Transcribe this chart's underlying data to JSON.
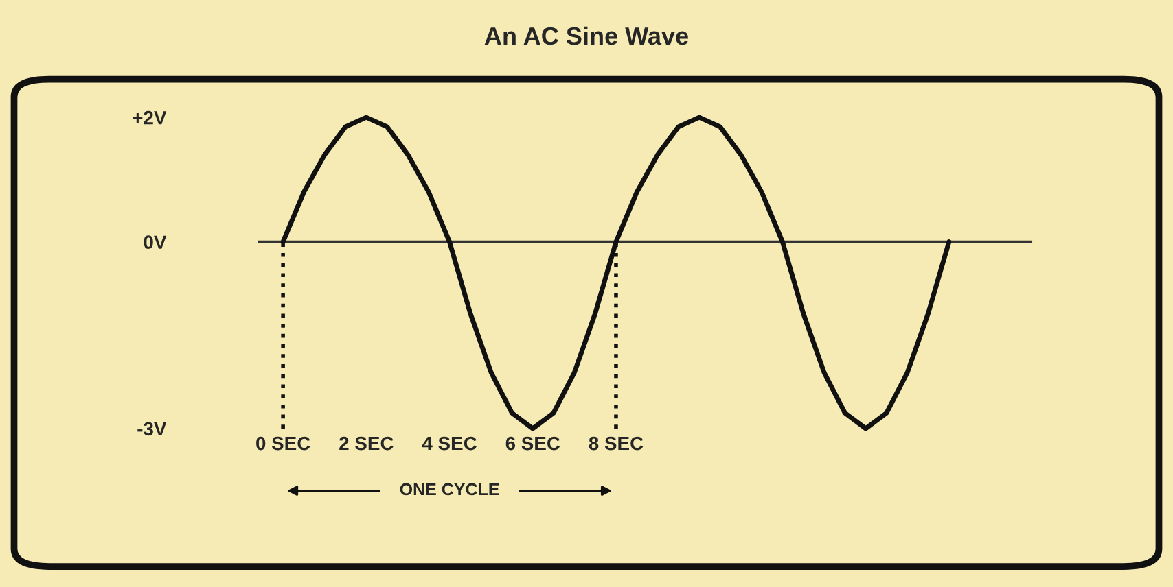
{
  "chart_data": {
    "type": "line",
    "title": "An AC Sine Wave",
    "x": [
      0,
      0.5,
      1,
      1.5,
      2,
      2.5,
      3,
      3.5,
      4,
      4.5,
      5,
      5.5,
      6,
      6.5,
      7,
      7.5,
      8,
      8.5,
      9,
      9.5,
      10,
      10.5,
      11,
      11.5,
      12,
      12.5,
      13,
      13.5,
      14,
      14.5,
      15,
      15.5,
      16
    ],
    "series": [
      {
        "color": "#111111",
        "values": [
          0,
          0.8,
          1.4,
          1.85,
          2,
          1.85,
          1.4,
          0.8,
          0,
          -1.15,
          -2.1,
          -2.75,
          -3,
          -2.75,
          -2.1,
          -1.15,
          0,
          0.8,
          1.4,
          1.85,
          2,
          1.85,
          1.4,
          0.8,
          0,
          -1.15,
          -2.1,
          -2.75,
          -3,
          -2.75,
          -2.1,
          -1.15,
          0
        ]
      }
    ],
    "xlim": [
      -0.6,
      18
    ],
    "ylim": [
      -3,
      2
    ],
    "xticks": [
      {
        "value": 0,
        "label": "0 SEC"
      },
      {
        "value": 2,
        "label": "2 SEC"
      },
      {
        "value": 4,
        "label": "4 SEC"
      },
      {
        "value": 6,
        "label": "6 SEC"
      },
      {
        "value": 8,
        "label": "8 SEC"
      }
    ],
    "yticks": [
      {
        "value": 2,
        "label": "+2V"
      },
      {
        "value": 0,
        "label": "0V"
      },
      {
        "value": -3,
        "label": "-3V"
      }
    ],
    "ref_lines": [
      {
        "axis": "y",
        "value": 0,
        "color": "#333333",
        "line_style": "solid"
      },
      {
        "axis": "x",
        "value": 0,
        "color": "#111111",
        "line_style": "dotted"
      },
      {
        "axis": "x",
        "value": 8,
        "color": "#111111",
        "line_style": "dotted"
      }
    ],
    "annotations": [
      "ONE CYCLE"
    ],
    "grid": false,
    "marker": "none",
    "line_style": "solid"
  }
}
